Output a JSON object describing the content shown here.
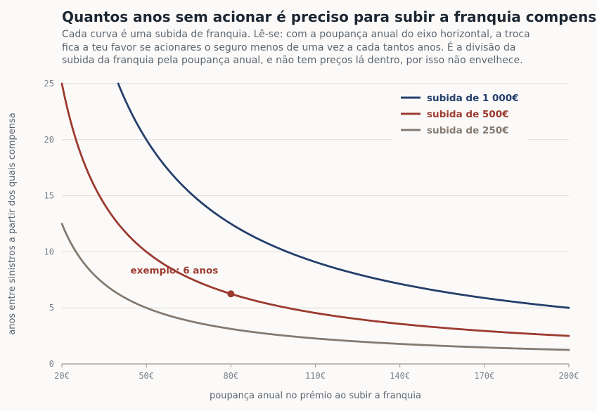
{
  "header": {
    "title": "Quantos anos sem acionar é preciso para subir a franquia compensar",
    "subtitle_lines": [
      "Cada curva é uma subida de franquia. Lê-se: com a poupança anual do eixo horizontal, a troca",
      "fica a teu favor se acionares o seguro menos de uma vez a cada tantos anos. É a divisão da",
      "subida da franquia pela poupança anual, e não tem preços lá dentro, por isso não envelhece."
    ]
  },
  "chart_data": {
    "type": "line",
    "title": "Quantos anos sem acionar é preciso para subir a franquia compensar",
    "xlabel": "poupança anual no prémio ao subir a franquia",
    "ylabel": "anos entre sinistros a partir dos quais compensa",
    "xlim": [
      20,
      200
    ],
    "ylim": [
      0,
      25
    ],
    "x_ticks": [
      20,
      50,
      80,
      110,
      140,
      170,
      200
    ],
    "x_tick_labels": [
      "20€",
      "50€",
      "80€",
      "110€",
      "140€",
      "170€",
      "200€"
    ],
    "y_ticks": [
      0,
      5,
      10,
      15,
      20,
      25
    ],
    "y_tick_labels": [
      "0",
      "5",
      "10",
      "15",
      "20",
      "25"
    ],
    "grid": "horizontal",
    "legend_position": "top-right",
    "series": [
      {
        "name": "subida de 1 000€",
        "increase": 1000,
        "color": "#243f6b"
      },
      {
        "name": "subida de 500€",
        "increase": 500,
        "color": "#9c3a2f"
      },
      {
        "name": "subida de 250€",
        "increase": 250,
        "color": "#857a70"
      }
    ],
    "annotation": {
      "text": "exemplo: 6 anos",
      "x": 80,
      "y": 6.25,
      "series": "subida de 500€"
    }
  }
}
